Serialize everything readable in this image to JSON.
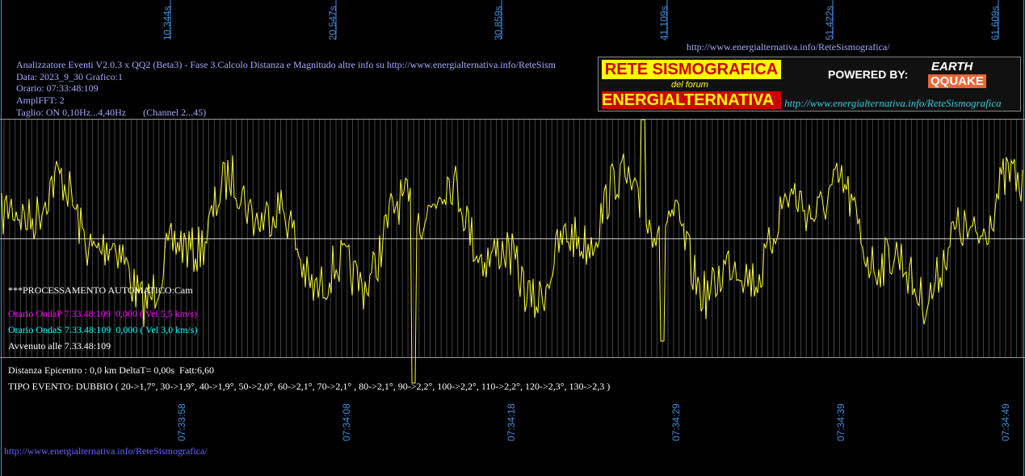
{
  "top_url": "http://www.energialternativa.info/ReteSismografica/",
  "header_lines": [
    "Analizzatore Eventi V2.0.3 x QQ2 (Beta3) - Fase 3.Calcolo Distanza e Magnitudo altre info su http://www.energialternativa.info/ReteSism",
    "Data: 2023_9_30 Grafico:1",
    "Orario: 07:33:48:109",
    "AmplFFT: 2",
    "Taglio: ON 0,10Hz...4,40Hz       (Channel 2...45)"
  ],
  "logo": {
    "title": "RETE SISMOGRAFICA",
    "subtitle": "del forum",
    "name": "ENERGIALTERNATIVA",
    "powered": "POWERED BY:",
    "brand_top": "EARTH",
    "brand_bottom": "QQUAKE",
    "url": "http://www.energialternativa.info/ReteSismografica"
  },
  "seconds_labels": [
    "10,344s",
    "20,547s",
    "30,859s",
    "41,109s",
    "51,422s",
    "61,609s"
  ],
  "time_labels": [
    "07:33:58",
    "07:34:08",
    "07:34:18",
    "07:34:29",
    "07:34:39",
    "07:34:49"
  ],
  "status": {
    "processing": "***PROCESSAMENTO AUTOMATICO:Cam",
    "onda_p": "Orario OndaP 7.33.48:109  0,000 ( Vel 5,5 km/s)",
    "onda_s": "Orario OndaS 7.33.48:109  0,000 ( Vel 3,0 km/s)",
    "avvenuto": "Avvenuto alle 7.33.48:109",
    "distanza": "Distanza Epicentro : 0,0 km DeltaT= 0,00s  Fatt:6,60",
    "tipo": "TIPO EVENTO: DUBBIO ( 20->1,7°, 30->1,9°, 40->1,9°, 50->2,0°, 60->2,1°, 70->2,1° , 80->2,1°, 90->2,2°, 100->2,2°, 110->2,2°, 120->2,3°, 130->2,3 )"
  },
  "footer_url": "http://www.energialternativa.info/ReteSismografica/"
}
